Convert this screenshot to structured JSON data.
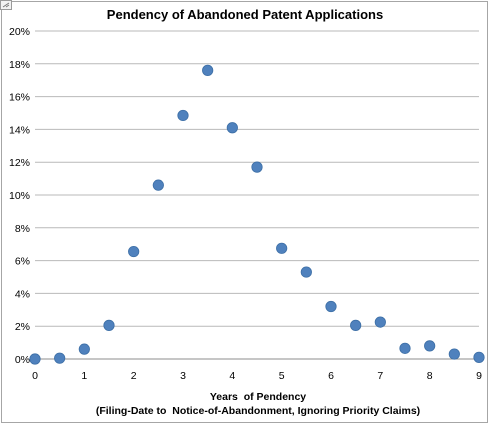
{
  "chart_data": {
    "type": "scatter",
    "title": "Pendency of Abandoned Patent Applications",
    "xlabel": "Years  of Pendency",
    "xlabel2": "(Filing-Date to  Notice-of-Abandonment, Ignoring Priority Claims)",
    "ylabel": "",
    "xlim": [
      0,
      9
    ],
    "ylim": [
      0,
      20
    ],
    "x_ticks": [
      "0",
      "1",
      "2",
      "3",
      "4",
      "5",
      "6",
      "7",
      "8",
      "9"
    ],
    "y_ticks": [
      "0%",
      "2%",
      "4%",
      "6%",
      "8%",
      "10%",
      "12%",
      "14%",
      "16%",
      "18%",
      "20%"
    ],
    "grid": "horizontal",
    "marker_color": "#4f81bd",
    "series": [
      {
        "x": [
          0,
          0.5,
          1,
          1.5,
          2,
          2.5,
          3,
          3.5,
          4,
          4.5,
          5,
          5.5,
          6,
          6.5,
          7,
          7.5,
          8,
          8.5,
          9
        ],
        "y": [
          0.0,
          0.05,
          0.6,
          2.05,
          6.55,
          10.6,
          14.85,
          17.6,
          14.1,
          11.7,
          6.75,
          5.3,
          3.2,
          2.05,
          2.25,
          0.65,
          0.8,
          0.3,
          0.1
        ]
      }
    ]
  }
}
